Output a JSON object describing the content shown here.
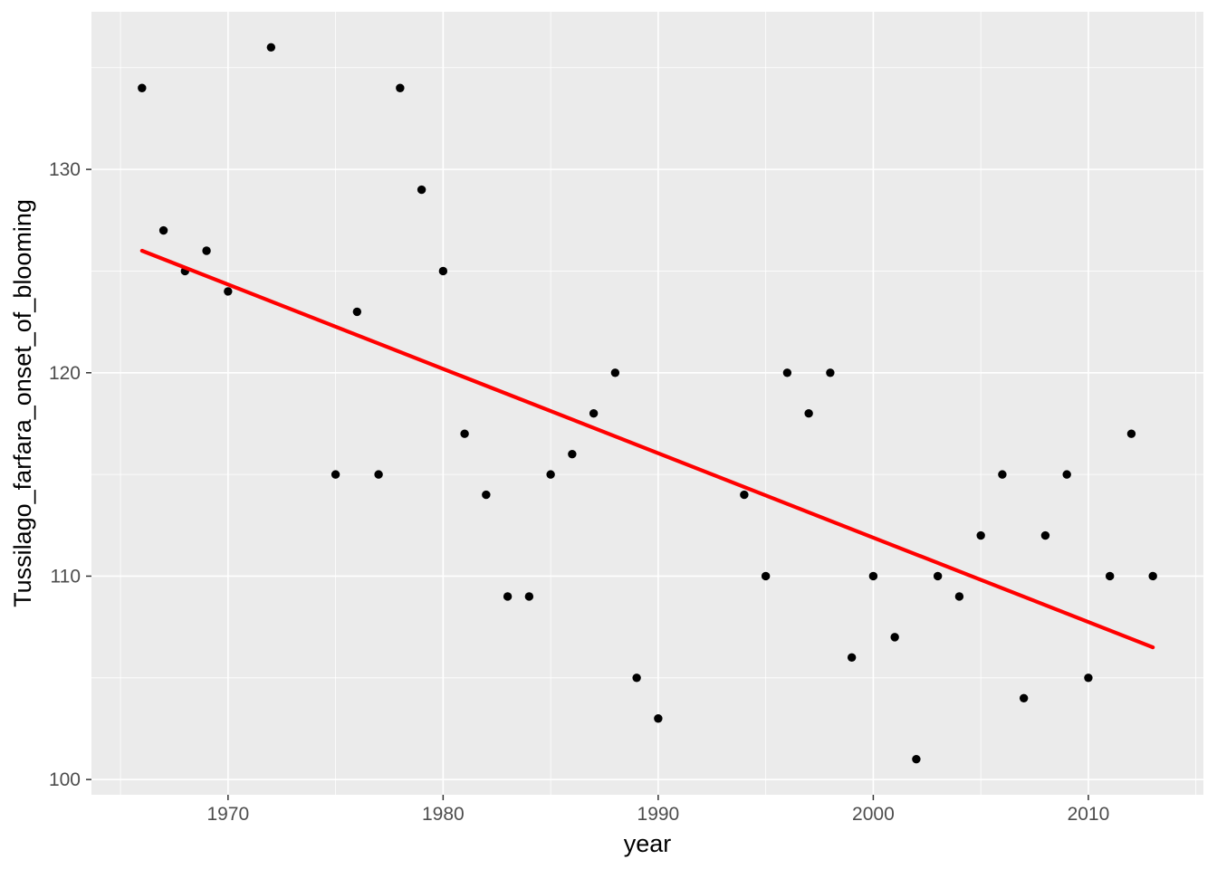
{
  "chart_data": {
    "type": "scatter",
    "title": "",
    "xlabel": "year",
    "ylabel": "Tussilago_farfara_onset_of_blooming",
    "x_ticks": [
      1970,
      1980,
      1990,
      2000,
      2010
    ],
    "y_ticks": [
      100,
      110,
      120,
      130
    ],
    "x_minor_gridlines": [
      1965,
      1975,
      1985,
      1995,
      2005,
      2015
    ],
    "y_minor_gridlines": [
      105,
      115,
      125,
      135
    ],
    "xlim": [
      1963.65,
      2015.35
    ],
    "ylim": [
      99.25,
      137.75
    ],
    "grid": "on",
    "legend_position": "none",
    "points": [
      [
        1966,
        134
      ],
      [
        1967,
        127
      ],
      [
        1968,
        125
      ],
      [
        1969,
        126
      ],
      [
        1970,
        124
      ],
      [
        1972,
        136
      ],
      [
        1975,
        115
      ],
      [
        1976,
        123
      ],
      [
        1977,
        115
      ],
      [
        1978,
        134
      ],
      [
        1979,
        129
      ],
      [
        1980,
        125
      ],
      [
        1981,
        117
      ],
      [
        1982,
        114
      ],
      [
        1983,
        109
      ],
      [
        1984,
        109
      ],
      [
        1985,
        115
      ],
      [
        1986,
        116
      ],
      [
        1987,
        118
      ],
      [
        1988,
        120
      ],
      [
        1989,
        105
      ],
      [
        1990,
        103
      ],
      [
        1994,
        114
      ],
      [
        1995,
        110
      ],
      [
        1996,
        120
      ],
      [
        1997,
        118
      ],
      [
        1998,
        120
      ],
      [
        1999,
        106
      ],
      [
        2000,
        110
      ],
      [
        2001,
        107
      ],
      [
        2002,
        101
      ],
      [
        2003,
        110
      ],
      [
        2004,
        109
      ],
      [
        2005,
        112
      ],
      [
        2006,
        115
      ],
      [
        2007,
        104
      ],
      [
        2008,
        112
      ],
      [
        2009,
        115
      ],
      [
        2010,
        105
      ],
      [
        2011,
        110
      ],
      [
        2012,
        117
      ],
      [
        2013,
        110
      ]
    ],
    "trend_line": {
      "x_start": 1966,
      "y_start": 126.0,
      "x_end": 2013,
      "y_end": 106.5
    },
    "colors": {
      "panel_background": "#EBEBEB",
      "gridline": "#FFFFFF",
      "point": "#000000",
      "trend_line": "#FF0000",
      "tick_mark": "#333333",
      "tick_label": "#4D4D4D",
      "axis_title": "#000000",
      "figure_background": "#FFFFFF"
    }
  }
}
